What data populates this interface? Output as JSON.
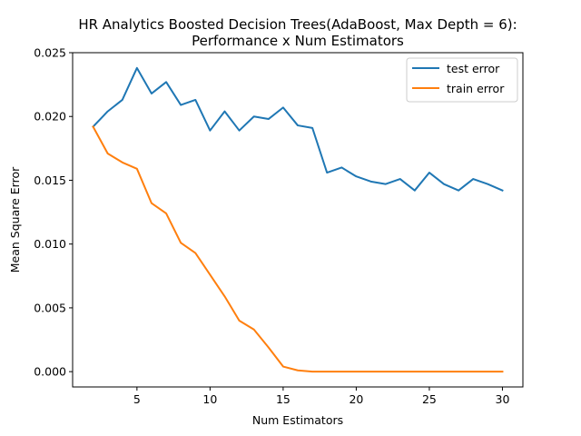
{
  "chart_data": {
    "type": "line",
    "title": "HR Analytics Boosted Decision Trees(AdaBoost, Max Depth = 6):",
    "subtitle": "Performance x Num Estimators",
    "xlabel": "Num Estimators",
    "ylabel": "Mean Square Error",
    "xlim": [
      0.6,
      31.4
    ],
    "ylim": [
      -0.0012,
      0.025
    ],
    "xticks": [
      "5",
      "10",
      "15",
      "20",
      "25",
      "30"
    ],
    "yticks": [
      "0.000",
      "0.005",
      "0.010",
      "0.015",
      "0.020",
      "0.025"
    ],
    "grid": false,
    "legend_position": "top-right",
    "x": [
      2,
      3,
      4,
      5,
      6,
      7,
      8,
      9,
      10,
      11,
      12,
      13,
      14,
      15,
      16,
      17,
      18,
      19,
      20,
      21,
      22,
      23,
      24,
      25,
      26,
      27,
      28,
      29,
      30
    ],
    "series": [
      {
        "name": "test error",
        "color": "#1f77b4",
        "values": [
          0.0192,
          0.0204,
          0.0213,
          0.0238,
          0.0218,
          0.0227,
          0.0209,
          0.0213,
          0.0189,
          0.0204,
          0.0189,
          0.02,
          0.0198,
          0.0207,
          0.0193,
          0.0191,
          0.0156,
          0.016,
          0.0153,
          0.0149,
          0.0147,
          0.0151,
          0.0142,
          0.0156,
          0.0147,
          0.0142,
          0.0151,
          0.0147,
          0.0142
        ]
      },
      {
        "name": "train error",
        "color": "#ff7f0e",
        "values": [
          0.0192,
          0.0171,
          0.0164,
          0.0159,
          0.0132,
          0.0124,
          0.0101,
          0.0093,
          0.0076,
          0.0059,
          0.004,
          0.0033,
          0.0019,
          0.0004,
          0.0001,
          0.0,
          0.0,
          0.0,
          0.0,
          0.0,
          0.0,
          0.0,
          0.0,
          0.0,
          0.0,
          0.0,
          0.0,
          0.0,
          0.0
        ]
      }
    ]
  }
}
